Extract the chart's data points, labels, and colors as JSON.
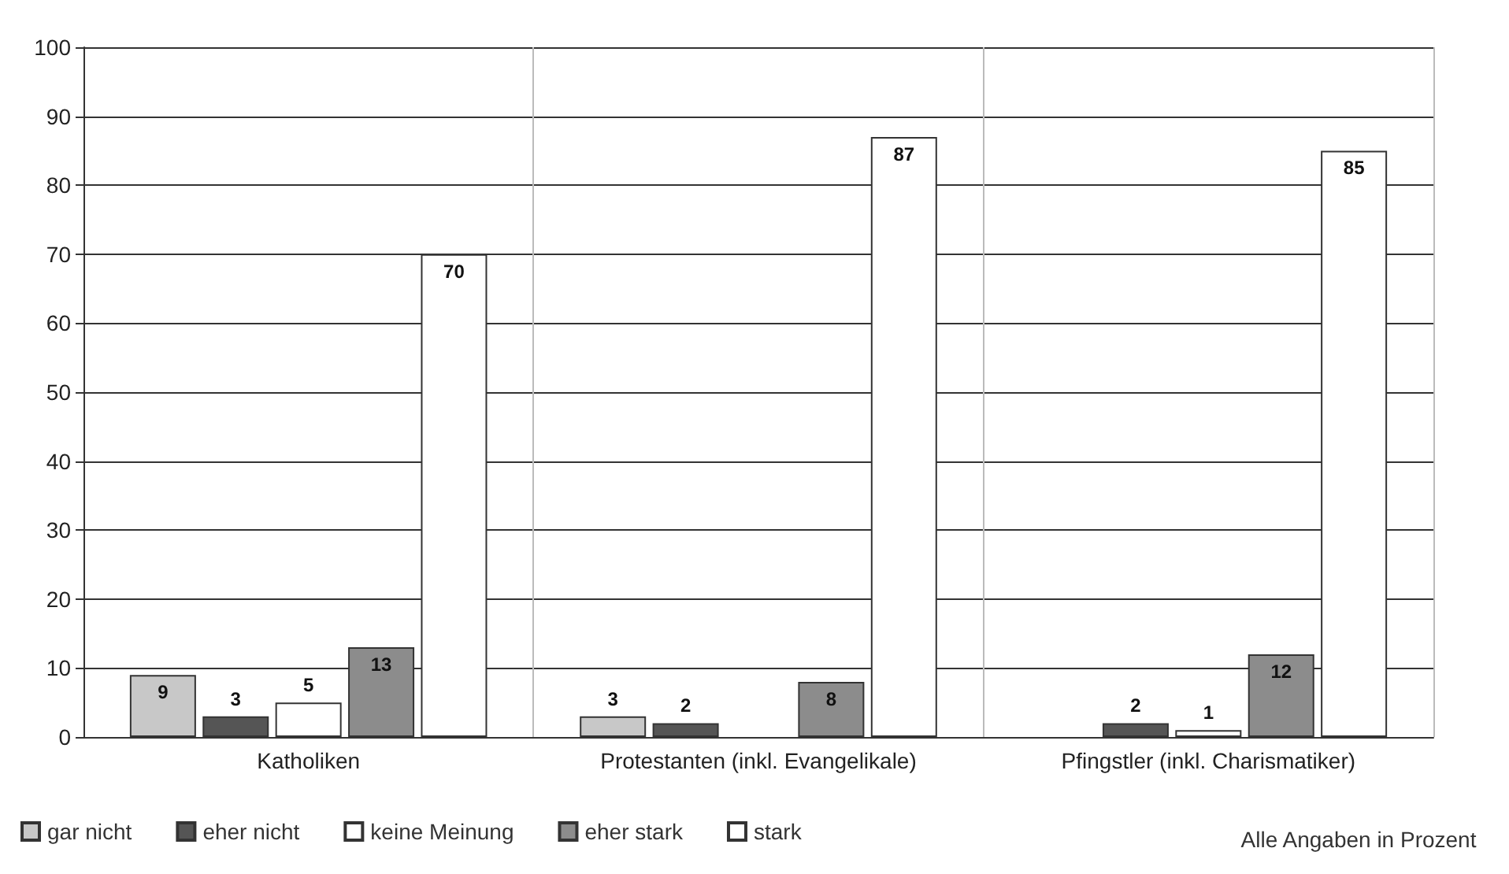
{
  "chart_data": {
    "type": "bar",
    "categories": [
      "Katholiken",
      "Protestanten (inkl. Evangelikale)",
      "Pfingstler (inkl. Charismatiker)"
    ],
    "series": [
      {
        "name": "gar nicht",
        "color": "#c8c8c8",
        "values": [
          9,
          3,
          null
        ]
      },
      {
        "name": "eher nicht",
        "color": "#555555",
        "values": [
          3,
          2,
          2
        ]
      },
      {
        "name": "keine Meinung",
        "color": "#ffffff",
        "values": [
          5,
          null,
          1
        ]
      },
      {
        "name": "eher stark",
        "color": "#8c8c8c",
        "values": [
          13,
          8,
          12
        ]
      },
      {
        "name": "stark",
        "color": "#ffffff",
        "values": [
          70,
          87,
          85
        ]
      }
    ],
    "ylim": [
      0,
      100
    ],
    "yticks": [
      0,
      10,
      20,
      30,
      40,
      50,
      60,
      70,
      80,
      90,
      100
    ],
    "grid": true,
    "legend": "bottom left",
    "data_labels": true,
    "annotations": [
      "Alle Angaben in Prozent"
    ]
  }
}
